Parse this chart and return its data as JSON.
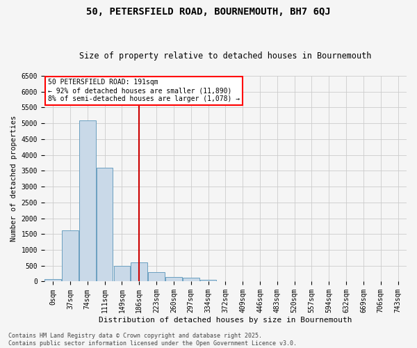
{
  "title": "50, PETERSFIELD ROAD, BOURNEMOUTH, BH7 6QJ",
  "subtitle": "Size of property relative to detached houses in Bournemouth",
  "xlabel": "Distribution of detached houses by size in Bournemouth",
  "ylabel": "Number of detached properties",
  "footer_line1": "Contains HM Land Registry data © Crown copyright and database right 2025.",
  "footer_line2": "Contains public sector information licensed under the Open Government Licence v3.0.",
  "bar_color": "#c9d9e8",
  "bar_edge_color": "#6a9fc0",
  "vline_color": "#cc0000",
  "vline_x": 5,
  "annotation_title": "50 PETERSFIELD ROAD: 191sqm",
  "annotation_line2": "← 92% of detached houses are smaller (11,890)",
  "annotation_line3": "8% of semi-detached houses are larger (1,078) →",
  "categories": [
    "0sqm",
    "37sqm",
    "74sqm",
    "111sqm",
    "149sqm",
    "186sqm",
    "223sqm",
    "260sqm",
    "297sqm",
    "334sqm",
    "372sqm",
    "409sqm",
    "446sqm",
    "483sqm",
    "520sqm",
    "557sqm",
    "594sqm",
    "632sqm",
    "669sqm",
    "706sqm",
    "743sqm"
  ],
  "values": [
    80,
    1620,
    5100,
    3600,
    490,
    600,
    290,
    150,
    110,
    50,
    15,
    5,
    2,
    2,
    1,
    1,
    0,
    0,
    0,
    0,
    0
  ],
  "vline_bar_index": 5,
  "ylim": [
    0,
    6500
  ],
  "yticks": [
    0,
    500,
    1000,
    1500,
    2000,
    2500,
    3000,
    3500,
    4000,
    4500,
    5000,
    5500,
    6000,
    6500
  ],
  "grid_color": "#cccccc",
  "background_color": "#f5f5f5",
  "title_fontsize": 10,
  "subtitle_fontsize": 8.5,
  "tick_fontsize": 7,
  "ylabel_fontsize": 7.5,
  "xlabel_fontsize": 8,
  "annotation_fontsize": 7,
  "footer_fontsize": 6
}
